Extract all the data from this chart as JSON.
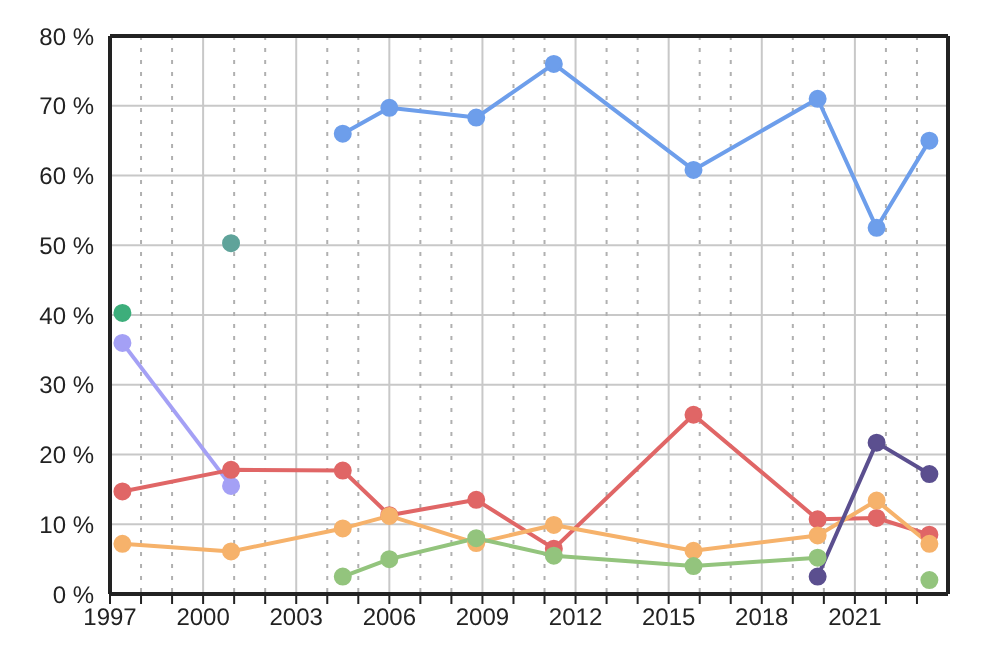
{
  "chart_data": {
    "type": "line",
    "marker": "circle",
    "line_style": "solid",
    "grid": true,
    "xlim": [
      1997,
      2024
    ],
    "xticks": [
      1997,
      {
        "value": 1998,
        "label": null
      },
      {
        "value": 1999,
        "label": null
      },
      2000,
      {
        "value": 2001,
        "label": null
      },
      {
        "value": 2002,
        "label": null
      },
      2003,
      {
        "value": 2004,
        "label": null
      },
      {
        "value": 2005,
        "label": null
      },
      2006,
      {
        "value": 2007,
        "label": null
      },
      {
        "value": 2008,
        "label": null
      },
      2009,
      {
        "value": 2010,
        "label": null
      },
      {
        "value": 2011,
        "label": null
      },
      2012,
      {
        "value": 2013,
        "label": null
      },
      {
        "value": 2014,
        "label": null
      },
      2015,
      {
        "value": 2016,
        "label": null
      },
      {
        "value": 2017,
        "label": null
      },
      2018,
      {
        "value": 2019,
        "label": null
      },
      {
        "value": 2020,
        "label": null
      },
      2021,
      {
        "value": 2022,
        "label": null
      },
      {
        "value": 2023,
        "label": null
      }
    ],
    "ylim": [
      0,
      80
    ],
    "yticks": [
      {
        "value": 0,
        "label": "0 %"
      },
      {
        "value": 10,
        "label": "10 %"
      },
      {
        "value": 20,
        "label": "20 %"
      },
      {
        "value": 30,
        "label": "30 %"
      },
      {
        "value": 40,
        "label": "40 %"
      },
      {
        "value": 50,
        "label": "50 %"
      },
      {
        "value": 60,
        "label": "60 %"
      },
      {
        "value": 70,
        "label": "70 %"
      },
      {
        "value": 80,
        "label": "80 %"
      }
    ],
    "x": [
      1997.4,
      2000.9,
      2004.5,
      2006.0,
      2008.8,
      2011.3,
      2015.8,
      2019.8,
      2021.7,
      2023.4
    ],
    "series": [
      {
        "color": "#6d9eeb",
        "values": [
          null,
          null,
          66,
          69.7,
          68.3,
          76,
          60.8,
          71,
          52.5,
          65
        ]
      },
      {
        "color": "#5fa39a",
        "values": [
          null,
          50.3,
          null,
          null,
          null,
          null,
          null,
          null,
          null,
          null
        ]
      },
      {
        "color": "#3dae7b",
        "values": [
          40.3,
          null,
          null,
          null,
          null,
          null,
          null,
          null,
          null,
          null
        ]
      },
      {
        "color": "#a4a0f5",
        "values": [
          36,
          15.5,
          null,
          null,
          null,
          null,
          null,
          null,
          null,
          null
        ]
      },
      {
        "color": "#e06666",
        "values": [
          14.7,
          17.8,
          17.7,
          11.3,
          13.5,
          6.5,
          25.7,
          10.7,
          10.9,
          8.5
        ]
      },
      {
        "color": "#f6b26b",
        "values": [
          7.2,
          6.1,
          9.4,
          11.2,
          7.3,
          9.9,
          6.2,
          8.4,
          13.4,
          7.2
        ]
      },
      {
        "color": "#93c47d",
        "values": [
          null,
          null,
          2.5,
          5.0,
          8.0,
          5.5,
          4.0,
          5.2,
          null,
          2.0
        ]
      },
      {
        "color": "#5b4f8f",
        "values": [
          null,
          null,
          null,
          null,
          null,
          null,
          null,
          2.5,
          21.7,
          17.2
        ]
      }
    ]
  }
}
